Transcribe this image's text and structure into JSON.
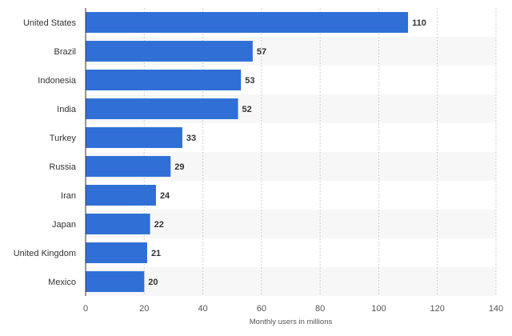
{
  "chart_data": {
    "type": "bar",
    "orientation": "horizontal",
    "title": "",
    "ylabel": "",
    "xlabel": "Monthly users in millions",
    "categories": [
      "United States",
      "Brazil",
      "Indonesia",
      "India",
      "Turkey",
      "Russia",
      "Iran",
      "Japan",
      "United Kingdom",
      "Mexico"
    ],
    "values": [
      110,
      57,
      53,
      52,
      33,
      29,
      24,
      22,
      21,
      20
    ],
    "xlim": [
      0,
      140
    ],
    "ticks": [
      0,
      20,
      40,
      60,
      80,
      100,
      120,
      140
    ],
    "data_labels": true,
    "grid": true,
    "bar_color": "#2f6fd6"
  }
}
